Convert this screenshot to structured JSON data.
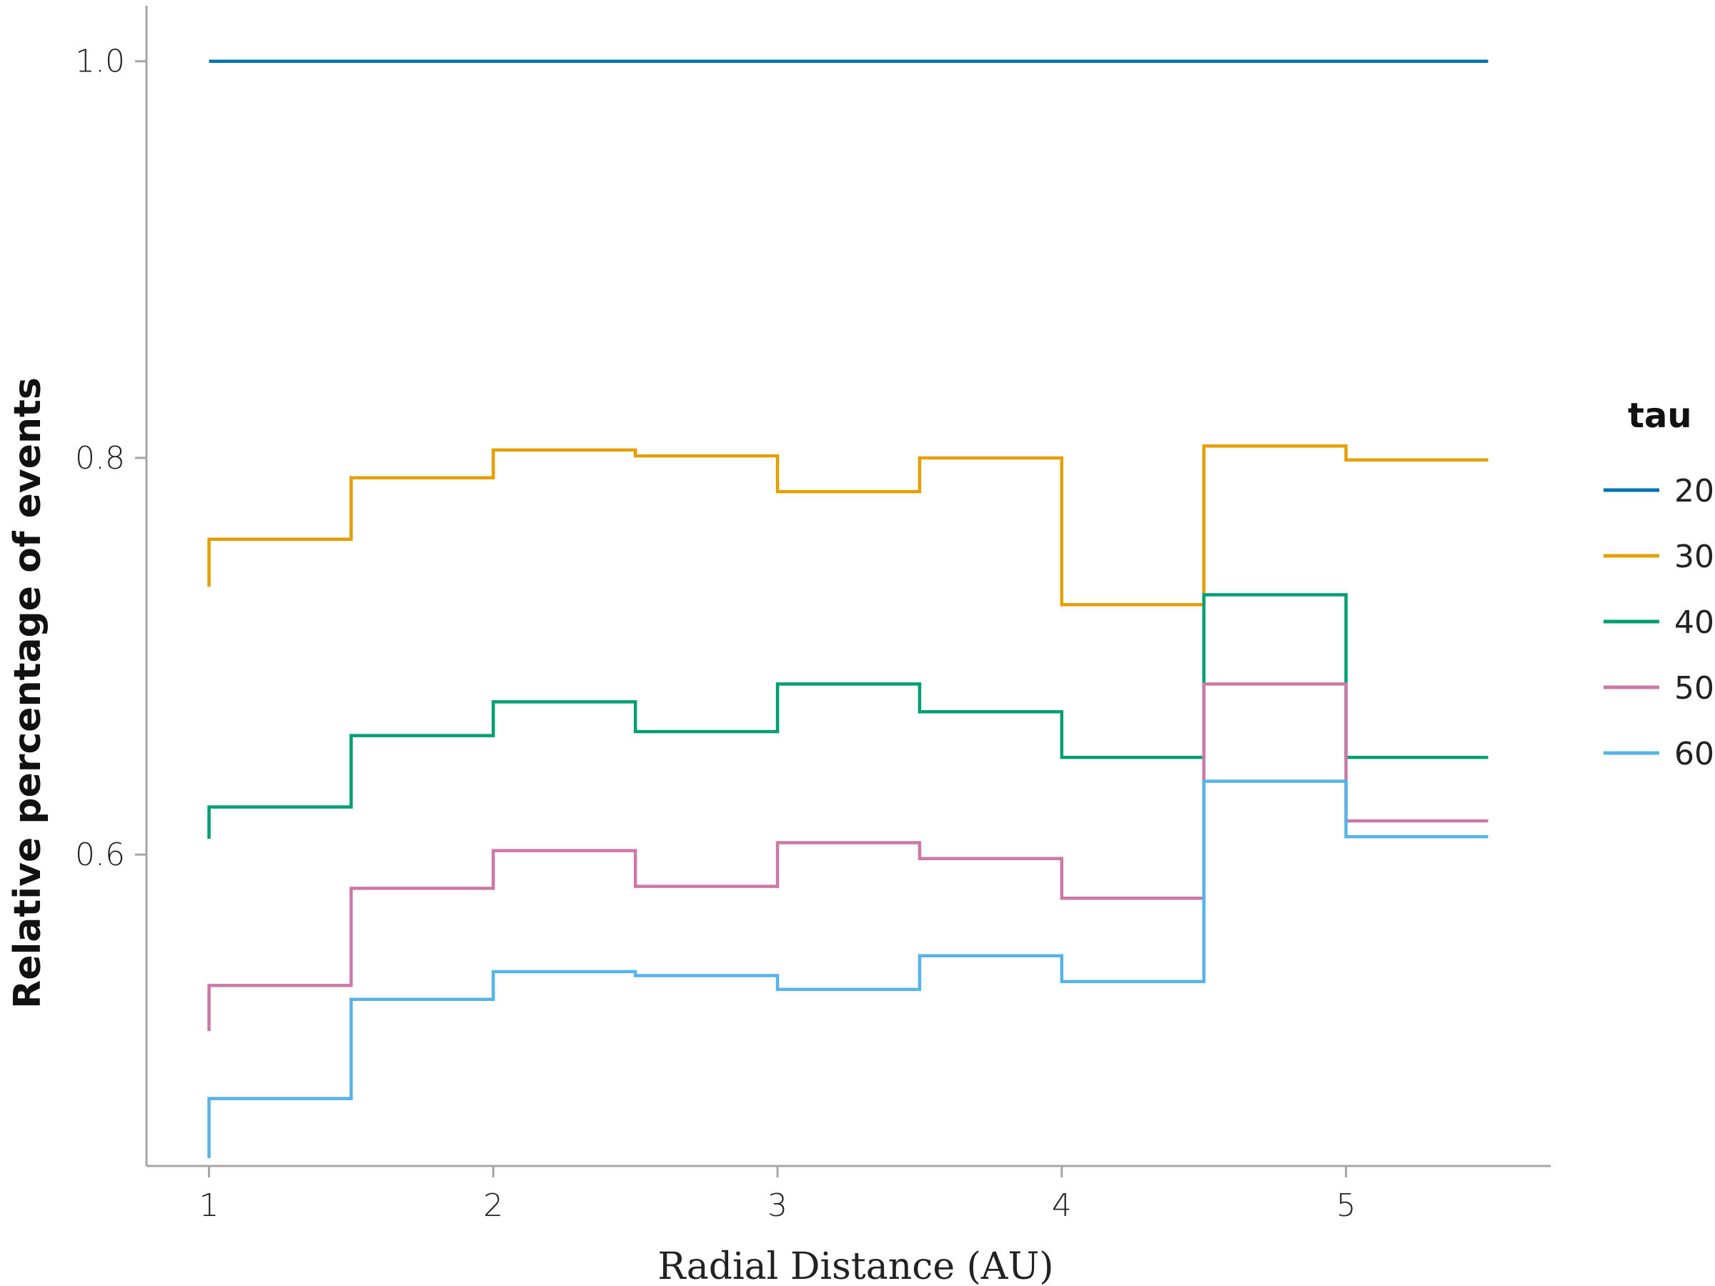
{
  "chart_data": {
    "type": "line",
    "step": true,
    "xlabel": "Radial Distance (AU)",
    "ylabel": "Relative percentage of events",
    "xlim": [
      0.78,
      5.72
    ],
    "ylim": [
      0.443,
      1.028
    ],
    "xticks": [
      1,
      2,
      3,
      4,
      5
    ],
    "yticks": [
      0.6,
      0.8,
      1.0
    ],
    "xtick_labels": [
      "1",
      "2",
      "3",
      "4",
      "5"
    ],
    "ytick_labels": [
      "0.6",
      "0.8",
      "1.0"
    ],
    "grid": false,
    "legend": {
      "title": "tau",
      "position": "right"
    },
    "x": [
      1.0,
      1.5,
      2.0,
      2.5,
      3.0,
      3.5,
      4.0,
      4.5,
      5.0,
      5.5
    ],
    "series": [
      {
        "name": "20",
        "color": "#0072B2",
        "values": [
          1.0,
          1.0,
          1.0,
          1.0,
          1.0,
          1.0,
          1.0,
          1.0,
          1.0,
          1.0
        ]
      },
      {
        "name": "30",
        "color": "#E69F00",
        "values": [
          0.735,
          0.759,
          0.79,
          0.804,
          0.801,
          0.783,
          0.8,
          0.726,
          0.806,
          0.799
        ]
      },
      {
        "name": "40",
        "color": "#009E73",
        "values": [
          0.608,
          0.624,
          0.66,
          0.677,
          0.662,
          0.686,
          0.672,
          0.649,
          0.731,
          0.649
        ]
      },
      {
        "name": "50",
        "color": "#CC79A7",
        "values": [
          0.511,
          0.534,
          0.583,
          0.602,
          0.584,
          0.606,
          0.598,
          0.578,
          0.686,
          0.617
        ]
      },
      {
        "name": "60",
        "color": "#56B4E9",
        "values": [
          0.447,
          0.477,
          0.527,
          0.541,
          0.539,
          0.532,
          0.549,
          0.536,
          0.637,
          0.609
        ]
      }
    ]
  }
}
